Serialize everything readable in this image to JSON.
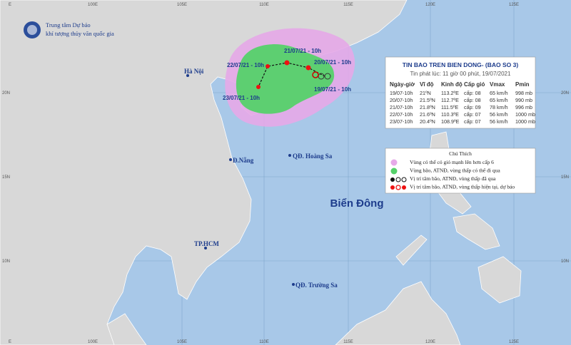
{
  "header": {
    "org_line1": "Trung tâm Dự báo",
    "org_line2": "khí tượng thủy văn quốc gia"
  },
  "grid": {
    "longitudes": [
      "100E",
      "105E",
      "110E",
      "115E",
      "120E",
      "125E"
    ],
    "latitudes": [
      "20N",
      "15N",
      "10N"
    ],
    "corner": "E"
  },
  "places": [
    "Hà Nội",
    "Đ.Nẵng",
    "QĐ. Hoàng Sa",
    "TP.HCM",
    "QĐ. Trường Sa"
  ],
  "sea_label": "Biển Đông",
  "track_labels": [
    "19/07/21 - 10h",
    "20/07/21 - 10h",
    "21/07/21 - 10h",
    "22/07/21 - 10h",
    "23/07/21 - 10h"
  ],
  "info_box": {
    "title": "TIN BAO TREN BIEN DONG- (BAO SO 3)",
    "subtitle": "Tin phát lúc: 11 giờ 00 phút, 19/07/2021",
    "columns": [
      "Ngày-giờ",
      "Vĩ độ",
      "Kinh độ",
      "Cấp gió",
      "Vmax",
      "Pmin"
    ],
    "rows": [
      [
        "19/07-10h",
        "21ºN",
        "113.2ºE",
        "cấp: 08",
        "65 km/h",
        "998 mb"
      ],
      [
        "20/07-10h",
        "21.5ºN",
        "112.7ºE",
        "cấp: 08",
        "65 km/h",
        "990 mb"
      ],
      [
        "21/07-10h",
        "21.8ºN",
        "111.5ºE",
        "cấp: 09",
        "78 km/h",
        "996 mb"
      ],
      [
        "22/07-10h",
        "21.6ºN",
        "110.3ºE",
        "cấp: 07",
        "56 km/h",
        "1000 mb"
      ],
      [
        "23/07-10h",
        "20.4ºN",
        "108.9ºE",
        "cấp: 07",
        "56 km/h",
        "1000 mb"
      ]
    ]
  },
  "legend": {
    "title": "Chú Thích",
    "items": [
      "Vùng có thể có gió mạnh lên hơn cấp 6",
      "Vùng bão, ATNĐ, vùng thấp có thể đi qua",
      "Vị trí tâm bão, ATNĐ, vùng thấp đã qua",
      "Vị trí tâm bão, ATNĐ, vùng thấp hiện tại, dự báo"
    ]
  }
}
